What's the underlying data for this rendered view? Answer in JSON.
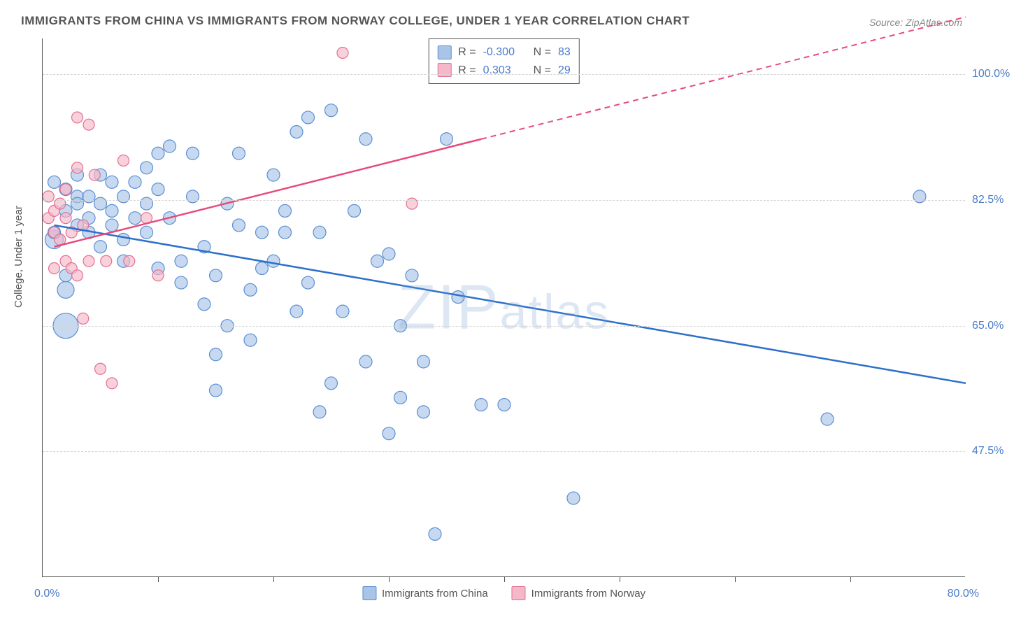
{
  "title": "IMMIGRANTS FROM CHINA VS IMMIGRANTS FROM NORWAY COLLEGE, UNDER 1 YEAR CORRELATION CHART",
  "source": "Source: ZipAtlas.com",
  "ylabel": "College, Under 1 year",
  "watermark": "ZIPatlas",
  "chart": {
    "type": "scatter",
    "xlim": [
      0,
      80
    ],
    "ylim": [
      30,
      105
    ],
    "xticks": [
      10,
      20,
      30,
      40,
      50,
      60,
      70
    ],
    "yticks": [
      47.5,
      65.0,
      82.5,
      100.0
    ],
    "ytick_labels": [
      "47.5%",
      "65.0%",
      "82.5%",
      "100.0%"
    ],
    "xaxis_min_label": "0.0%",
    "xaxis_max_label": "80.0%",
    "background_color": "#ffffff",
    "grid_color": "#d5d5d5",
    "axis_color": "#555555"
  },
  "series": [
    {
      "name": "Immigrants from China",
      "fill": "#a8c5e8",
      "stroke": "#5b8fd1",
      "line_color": "#2e6fc9",
      "R": "-0.300",
      "N": "83",
      "trend": {
        "x1": 1,
        "y1": 79,
        "x2": 80,
        "y2": 57,
        "solid_until_x": 80
      },
      "points": [
        [
          1,
          85,
          9
        ],
        [
          1,
          77,
          13
        ],
        [
          1,
          78,
          9
        ],
        [
          2,
          81,
          9
        ],
        [
          2,
          65,
          18
        ],
        [
          2,
          84,
          9
        ],
        [
          2,
          70,
          12
        ],
        [
          2,
          72,
          9
        ],
        [
          3,
          79,
          9
        ],
        [
          3,
          83,
          9
        ],
        [
          3,
          82,
          9
        ],
        [
          3,
          86,
          9
        ],
        [
          4,
          83,
          9
        ],
        [
          4,
          80,
          9
        ],
        [
          4,
          78,
          9
        ],
        [
          5,
          86,
          9
        ],
        [
          5,
          76,
          9
        ],
        [
          5,
          82,
          9
        ],
        [
          6,
          85,
          9
        ],
        [
          6,
          79,
          9
        ],
        [
          6,
          81,
          9
        ],
        [
          7,
          74,
          9
        ],
        [
          7,
          83,
          9
        ],
        [
          7,
          77,
          9
        ],
        [
          8,
          85,
          9
        ],
        [
          8,
          80,
          9
        ],
        [
          9,
          78,
          9
        ],
        [
          9,
          82,
          9
        ],
        [
          9,
          87,
          9
        ],
        [
          10,
          84,
          9
        ],
        [
          10,
          73,
          9
        ],
        [
          10,
          89,
          9
        ],
        [
          11,
          90,
          9
        ],
        [
          11,
          80,
          9
        ],
        [
          12,
          74,
          9
        ],
        [
          12,
          71,
          9
        ],
        [
          13,
          89,
          9
        ],
        [
          13,
          83,
          9
        ],
        [
          14,
          68,
          9
        ],
        [
          14,
          76,
          9
        ],
        [
          15,
          72,
          9
        ],
        [
          15,
          61,
          9
        ],
        [
          15,
          56,
          9
        ],
        [
          16,
          82,
          9
        ],
        [
          16,
          65,
          9
        ],
        [
          17,
          89,
          9
        ],
        [
          17,
          79,
          9
        ],
        [
          18,
          63,
          9
        ],
        [
          18,
          70,
          9
        ],
        [
          19,
          73,
          9
        ],
        [
          19,
          78,
          9
        ],
        [
          20,
          86,
          9
        ],
        [
          20,
          74,
          9
        ],
        [
          21,
          81,
          9
        ],
        [
          21,
          78,
          9
        ],
        [
          22,
          92,
          9
        ],
        [
          22,
          67,
          9
        ],
        [
          23,
          94,
          9
        ],
        [
          23,
          71,
          9
        ],
        [
          24,
          78,
          9
        ],
        [
          24,
          53,
          9
        ],
        [
          25,
          95,
          9
        ],
        [
          25,
          57,
          9
        ],
        [
          26,
          67,
          9
        ],
        [
          27,
          81,
          9
        ],
        [
          28,
          91,
          9
        ],
        [
          28,
          60,
          9
        ],
        [
          29,
          74,
          9
        ],
        [
          30,
          75,
          9
        ],
        [
          30,
          50,
          9
        ],
        [
          31,
          65,
          9
        ],
        [
          31,
          55,
          9
        ],
        [
          32,
          72,
          9
        ],
        [
          33,
          53,
          9
        ],
        [
          33,
          60,
          9
        ],
        [
          34,
          36,
          9
        ],
        [
          35,
          91,
          9
        ],
        [
          36,
          69,
          9
        ],
        [
          38,
          54,
          9
        ],
        [
          40,
          54,
          9
        ],
        [
          46,
          41,
          9
        ],
        [
          68,
          52,
          9
        ],
        [
          76,
          83,
          9
        ]
      ]
    },
    {
      "name": "Immigrants from Norway",
      "fill": "#f5b8c8",
      "stroke": "#e56f94",
      "line_color": "#e84a7a",
      "R": "0.303",
      "N": "29",
      "trend": {
        "x1": 1,
        "y1": 76,
        "x2": 80,
        "y2": 108,
        "solid_until_x": 38
      },
      "points": [
        [
          0.5,
          80,
          8
        ],
        [
          0.5,
          83,
          8
        ],
        [
          1,
          78,
          8
        ],
        [
          1,
          81,
          8
        ],
        [
          1,
          73,
          8
        ],
        [
          1.5,
          82,
          8
        ],
        [
          1.5,
          77,
          8
        ],
        [
          2,
          80,
          8
        ],
        [
          2,
          84,
          8
        ],
        [
          2,
          74,
          8
        ],
        [
          2.5,
          73,
          8
        ],
        [
          2.5,
          78,
          8
        ],
        [
          3,
          87,
          8
        ],
        [
          3,
          72,
          8
        ],
        [
          3,
          94,
          8
        ],
        [
          3.5,
          79,
          8
        ],
        [
          3.5,
          66,
          8
        ],
        [
          4,
          93,
          8
        ],
        [
          4,
          74,
          8
        ],
        [
          4.5,
          86,
          8
        ],
        [
          5,
          59,
          8
        ],
        [
          5.5,
          74,
          8
        ],
        [
          6,
          57,
          8
        ],
        [
          7,
          88,
          8
        ],
        [
          7.5,
          74,
          8
        ],
        [
          9,
          80,
          8
        ],
        [
          10,
          72,
          8
        ],
        [
          26,
          103,
          8
        ],
        [
          32,
          82,
          8
        ]
      ]
    }
  ],
  "top_legend": {
    "rows": [
      {
        "swatch": 0,
        "r_label": "R =",
        "r_val": "-0.300",
        "n_label": "N =",
        "n_val": "83"
      },
      {
        "swatch": 1,
        "r_label": "R =",
        "r_val": "0.303",
        "n_label": "N =",
        "n_val": "29"
      }
    ]
  }
}
